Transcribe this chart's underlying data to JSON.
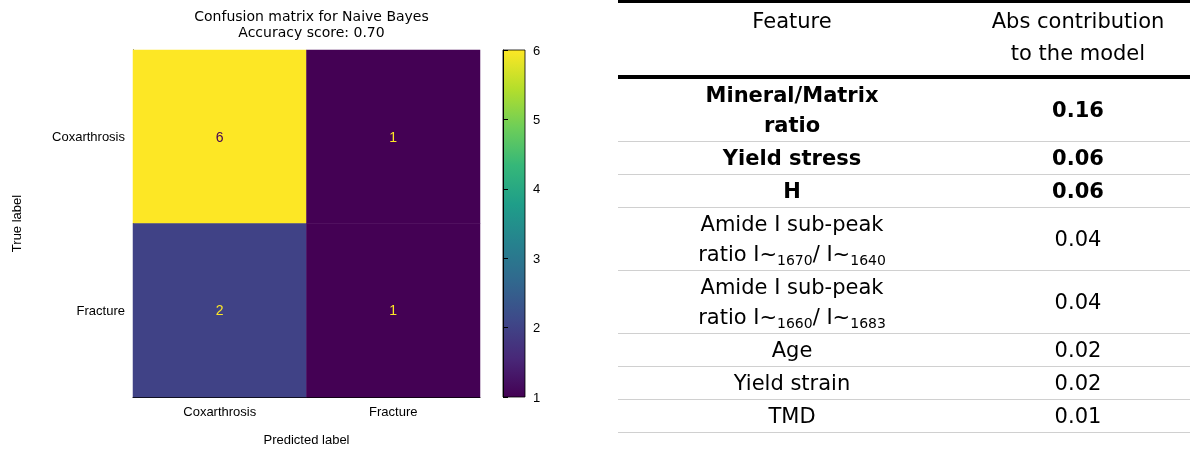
{
  "chart_data": [
    {
      "type": "heatmap",
      "title": "Confusion matrix for Naive Bayes",
      "subtitle": "Accuracy score: 0.70",
      "xlabel": "Predicted label",
      "ylabel": "True label",
      "categories": [
        "Coxarthrosis",
        "Fracture"
      ],
      "y_categories": [
        "Coxarthrosis",
        "Fracture"
      ],
      "cells": [
        [
          6,
          1
        ],
        [
          2,
          1
        ]
      ],
      "data_labels": true,
      "clim": [
        1,
        6
      ],
      "cticks": [
        1,
        2,
        3,
        4,
        5,
        6
      ]
    },
    {
      "type": "other",
      "annotations": [
        "Feature",
        "Abs contribution to the model"
      ],
      "categories": [
        "Mineral/Matrix ratio",
        "Yield stress",
        "H",
        "Amide I sub-peak ratio I~$_{1670}$/ I~$_{1640}$",
        "Amide I sub-peak ratio I~$_{1660}$/ I~$_{1683}$",
        "Age",
        "Yield strain",
        "TMD"
      ],
      "values": [
        0.16,
        0.06,
        0.06,
        0.04,
        0.04,
        0.02,
        0.02,
        0.01
      ],
      "data_labels": true
    }
  ]
}
